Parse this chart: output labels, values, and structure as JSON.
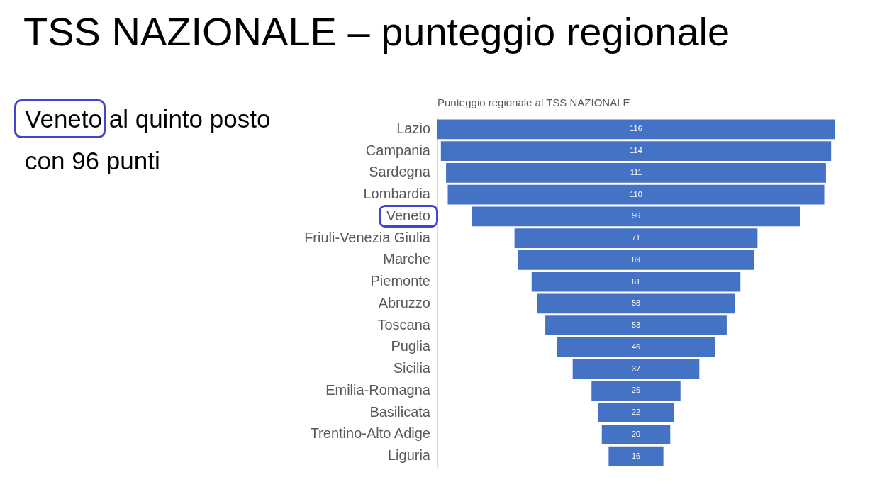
{
  "chart_data": {
    "type": "other",
    "title": "TSS NAZIONALE – punteggio regionale",
    "subtitle": "Punteggio regionale al TSS NAZIONALE",
    "categories": [
      "Lazio",
      "Campania",
      "Sardegna",
      "Lombardia",
      "Veneto",
      "Friuli-Venezia Giulia",
      "Marche",
      "Piemonte",
      "Abruzzo",
      "Toscana",
      "Puglia",
      "Sicilia",
      "Emilia-Romagna",
      "Basilicata",
      "Trentino-Alto Adige",
      "Liguria"
    ],
    "values": [
      116,
      114,
      111,
      110,
      96,
      71,
      69,
      61,
      58,
      53,
      46,
      37,
      26,
      22,
      20,
      16
    ],
    "color": "#4472c4",
    "data_labels": true,
    "annotations": [
      {
        "text": "Veneto al quinto posto con 96 punti",
        "y": "Veneto"
      }
    ]
  }
}
